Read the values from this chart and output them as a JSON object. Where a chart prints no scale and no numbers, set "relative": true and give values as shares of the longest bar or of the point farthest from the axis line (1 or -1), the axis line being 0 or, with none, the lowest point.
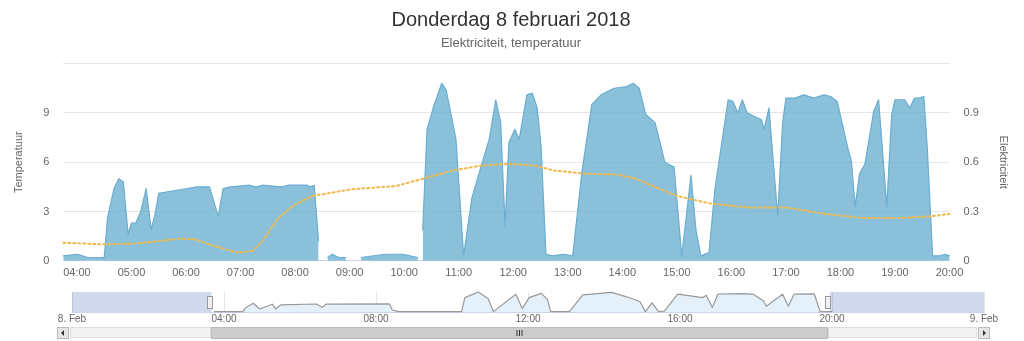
{
  "chart_data": [
    {
      "type": "line",
      "title": "Donderdag 8 februari 2018",
      "subtitle": "Elektriciteit, temperatuur",
      "ylabel": "Temperatuur",
      "y2label": "Elektriciteit",
      "marker": "none",
      "grid": "y",
      "xlim": [
        3.75,
        20
      ],
      "xticks": [
        {
          "value": 4,
          "label": "04:00"
        },
        {
          "value": 5,
          "label": "05:00"
        },
        {
          "value": 6,
          "label": "06:00"
        },
        {
          "value": 7,
          "label": "07:00"
        },
        {
          "value": 8,
          "label": "08:00"
        },
        {
          "value": 9,
          "label": "09:00"
        },
        {
          "value": 10,
          "label": "10:00"
        },
        {
          "value": 11,
          "label": "11:00"
        },
        {
          "value": 12,
          "label": "12:00"
        },
        {
          "value": 13,
          "label": "13:00"
        },
        {
          "value": 14,
          "label": "14:00"
        },
        {
          "value": 15,
          "label": "15:00"
        },
        {
          "value": 16,
          "label": "16:00"
        },
        {
          "value": 17,
          "label": "17:00"
        },
        {
          "value": 18,
          "label": "18:00"
        },
        {
          "value": 19,
          "label": "19:00"
        },
        {
          "value": 20,
          "label": "20:00"
        }
      ],
      "ylim": [
        0,
        12
      ],
      "yticks": [
        0,
        3,
        6,
        9,
        {
          "value": 12,
          "label": null
        }
      ],
      "y2lim": [
        0,
        1.2
      ],
      "y2ticks": [
        0,
        0.3,
        0.6,
        0.9
      ],
      "series": [
        {
          "type": "area",
          "axis": "y2",
          "color": "#6aaed0",
          "x": [
            3.75,
            4.01,
            4.2,
            4.5,
            4.56,
            4.68,
            4.77,
            4.85,
            4.94,
            5.0,
            5.08,
            5.17,
            5.27,
            5.36,
            5.43,
            5.5,
            5.66,
            6.02,
            6.2,
            6.43,
            6.59,
            6.68,
            6.82,
            7.17,
            7.29,
            7.4,
            7.75,
            7.87,
            8.22,
            8.28,
            8.35,
            8.43,
            8.5,
            8.6,
            8.68,
            8.8,
            8.93,
            9.05,
            9.21,
            9.65,
            9.97,
            10.25,
            10.3,
            10.34,
            10.42,
            10.54,
            10.69,
            10.77,
            10.95,
            11.09,
            11.24,
            11.38,
            11.56,
            11.68,
            11.77,
            11.85,
            11.92,
            12.03,
            12.11,
            12.25,
            12.35,
            12.44,
            12.51,
            12.6,
            12.72,
            12.92,
            13.09,
            13.26,
            13.44,
            13.61,
            13.85,
            14.08,
            14.2,
            14.31,
            14.43,
            14.6,
            14.78,
            14.95,
            15.09,
            15.26,
            15.35,
            15.44,
            15.59,
            15.7,
            15.94,
            16.03,
            16.12,
            16.2,
            16.29,
            16.47,
            16.55,
            16.6,
            16.69,
            16.85,
            16.94,
            17.0,
            17.16,
            17.33,
            17.51,
            17.7,
            17.82,
            17.94,
            18.14,
            18.2,
            18.27,
            18.35,
            18.45,
            18.61,
            18.7,
            18.85,
            18.94,
            19.0,
            19.18,
            19.27,
            19.36,
            19.44,
            19.53,
            19.59,
            19.69,
            19.82,
            19.92,
            20
          ],
          "values": [
            0.03,
            0.04,
            0.02,
            0.02,
            0.26,
            0.44,
            0.5,
            0.48,
            0.16,
            0.23,
            0.23,
            0.3,
            0.44,
            0.19,
            0.28,
            0.41,
            0.42,
            0.44,
            0.45,
            0.45,
            0.27,
            0.44,
            0.45,
            0.46,
            0.45,
            0.46,
            0.45,
            0.46,
            0.46,
            0.45,
            0.46,
            0.12,
            null,
            0.02,
            0.04,
            0.02,
            0.02,
            null,
            0.02,
            0.04,
            0.04,
            0.02,
            null,
            0.19,
            0.8,
            0.94,
            1.08,
            1.04,
            0.74,
            0.03,
            0.38,
            0.54,
            0.74,
            0.98,
            0.84,
            0.21,
            0.72,
            0.8,
            0.74,
            1.01,
            1.02,
            0.93,
            0.7,
            0.04,
            0.03,
            0.04,
            0.03,
            0.54,
            0.95,
            1.01,
            1.05,
            1.06,
            1.08,
            1.05,
            0.89,
            0.84,
            0.6,
            0.57,
            0.03,
            0.52,
            0.19,
            0.03,
            0.05,
            0.44,
            0.98,
            0.97,
            0.9,
            0.98,
            0.9,
            0.87,
            0.86,
            0.8,
            0.93,
            0.27,
            0.84,
            0.99,
            0.99,
            1.01,
            0.99,
            1.01,
            1.0,
            0.97,
            0.68,
            0.61,
            0.33,
            0.53,
            0.59,
            0.91,
            0.98,
            0.33,
            0.89,
            0.98,
            0.98,
            0.93,
            0.99,
            0.99,
            1.0,
            0.7,
            0.03,
            0.03,
            0.04,
            0.03
          ]
        },
        {
          "type": "line",
          "axis": "y",
          "color": "#f0b849",
          "line_style": "dotted",
          "x": [
            3.75,
            4.5,
            5.08,
            5.5,
            5.88,
            6.17,
            6.52,
            6.93,
            7.22,
            7.4,
            7.69,
            7.98,
            8.33,
            8.68,
            9.03,
            9.85,
            10.3,
            10.9,
            11.42,
            11.94,
            12.39,
            12.74,
            13.33,
            13.9,
            14.25,
            14.6,
            15.0,
            15.59,
            16.29,
            16.99,
            17.73,
            18.43,
            19.08,
            19.65,
            20
          ],
          "values": [
            1.1,
            1.0,
            1.05,
            1.2,
            1.35,
            1.3,
            0.9,
            0.5,
            0.6,
            1.2,
            2.6,
            3.4,
            3.95,
            4.15,
            4.35,
            4.55,
            4.95,
            5.5,
            5.8,
            5.9,
            5.8,
            5.5,
            5.3,
            5.25,
            5.0,
            4.5,
            3.95,
            3.5,
            3.25,
            3.25,
            2.85,
            2.6,
            2.6,
            2.7,
            2.85
          ]
        }
      ]
    },
    {
      "type": "area",
      "relative": true,
      "tick_labels": "x",
      "grid": "x",
      "marker": "none",
      "bands": [
        {
          "axis": "x",
          "from": 0,
          "to": 3.67,
          "color": "#6685c2"
        },
        {
          "axis": "x",
          "from": 19.94,
          "to": 24,
          "color": "#6685c2"
        }
      ],
      "xlim": [
        0,
        24
      ],
      "xticks": [
        {
          "value": 0,
          "label": "8. Feb"
        },
        {
          "value": 4,
          "label": "04:00"
        },
        {
          "value": 8,
          "label": "08:00"
        },
        {
          "value": 12,
          "label": "12:00"
        },
        {
          "value": 16,
          "label": "16:00"
        },
        {
          "value": 20,
          "label": "20:00"
        },
        {
          "value": 24,
          "label": "9. Feb"
        }
      ],
      "series": [
        {
          "color": "#999999",
          "x": [
            3.75,
            4.5,
            4.56,
            4.77,
            4.94,
            5.27,
            5.36,
            5.5,
            6.43,
            6.59,
            6.68,
            8.35,
            8.43,
            8.6,
            10.25,
            10.34,
            10.69,
            10.95,
            11.09,
            11.68,
            11.85,
            12.03,
            12.35,
            12.51,
            12.6,
            13.09,
            13.44,
            14.2,
            14.6,
            14.95,
            15.09,
            15.26,
            15.44,
            15.59,
            15.94,
            16.6,
            16.69,
            16.85,
            17.0,
            17.7,
            17.94,
            18.2,
            18.27,
            18.7,
            18.85,
            19.0,
            19.53,
            19.69,
            20
          ],
          "values": [
            0.02,
            0.02,
            0.2,
            0.44,
            0.15,
            0.39,
            0.16,
            0.36,
            0.4,
            0.23,
            0.39,
            0.41,
            0.1,
            0.02,
            0.02,
            0.72,
            1,
            0.67,
            0.02,
            0.89,
            0.18,
            0.72,
            0.93,
            0.63,
            0.02,
            0.02,
            0.86,
            0.98,
            0.76,
            0.51,
            0.02,
            0.46,
            0.02,
            0.04,
            0.89,
            0.72,
            0.84,
            0.23,
            0.9,
            0.92,
            0.88,
            0.55,
            0.29,
            0.89,
            0.29,
            0.89,
            0.91,
            0.02,
            0.02
          ]
        }
      ]
    }
  ]
}
